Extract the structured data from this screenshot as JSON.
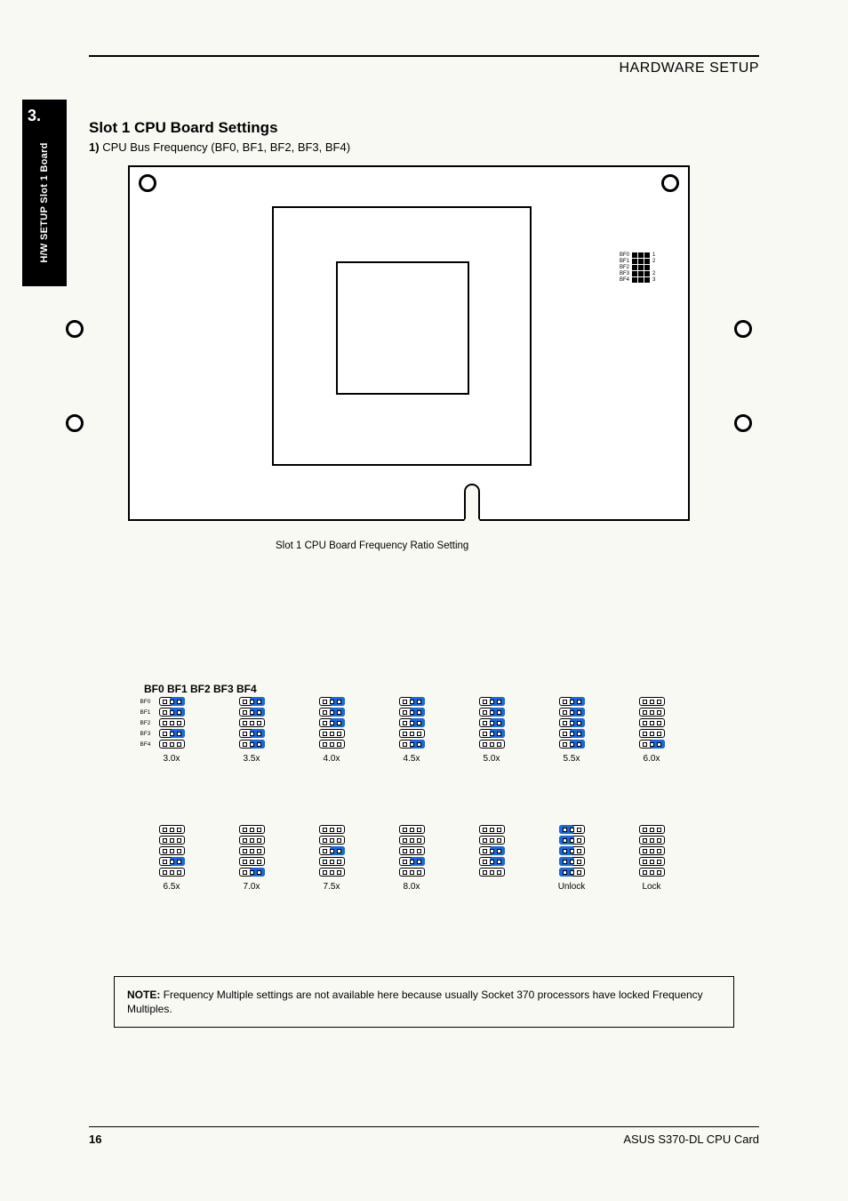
{
  "header": {
    "text": "HARDWARE SETUP"
  },
  "side_tab": {
    "number": "3.",
    "label": "H/W SETUP Slot 1 Board"
  },
  "section": {
    "title": "Slot 1 CPU Board Settings",
    "prefix": "1)",
    "body": "CPU Bus Frequency (BF0, BF1, BF2, BF3, BF4)"
  },
  "board": {
    "labels": {
      "bf0": "BF0",
      "bf1": "BF1",
      "bf2": "BF2",
      "bf3": "BF3",
      "bf4": "BF4",
      "pin1": "1",
      "pin2a": "2",
      "pin2b": "2",
      "pin3": "3"
    }
  },
  "caption": {
    "text": "Slot 1 CPU Board Frequency Ratio Setting"
  },
  "settings_top": {
    "heading": "BF0 BF1 BF2 BF3 BF4",
    "columns": [
      {
        "ratio": "3.0x",
        "pattern": [
          "23",
          "23",
          "00",
          "23",
          "00"
        ],
        "labels_left": [
          "BF0",
          "BF1",
          "BF2",
          "BF3",
          "BF4"
        ]
      },
      {
        "ratio": "3.5x",
        "pattern": [
          "23",
          "23",
          "00",
          "23",
          "23"
        ]
      },
      {
        "ratio": "4.0x",
        "pattern": [
          "23",
          "23",
          "23",
          "00",
          "00"
        ]
      },
      {
        "ratio": "4.5x",
        "pattern": [
          "23",
          "23",
          "23",
          "00",
          "23"
        ]
      },
      {
        "ratio": "5.0x",
        "pattern": [
          "23",
          "23",
          "23",
          "23",
          "00"
        ]
      },
      {
        "ratio": "5.5x",
        "pattern": [
          "23",
          "23",
          "23",
          "23",
          "23"
        ]
      },
      {
        "ratio": "6.0x",
        "pattern": [
          "00",
          "00",
          "00",
          "00",
          "23"
        ]
      }
    ]
  },
  "settings_bottom": {
    "columns": [
      {
        "ratio": "6.5x",
        "pattern": [
          "00",
          "00",
          "00",
          "23",
          "00"
        ]
      },
      {
        "ratio": "7.0x",
        "pattern": [
          "00",
          "00",
          "00",
          "00",
          "23"
        ]
      },
      {
        "ratio": "7.5x",
        "pattern": [
          "00",
          "00",
          "23",
          "00",
          "00"
        ]
      },
      {
        "ratio": "8.0x",
        "pattern": [
          "00",
          "00",
          "00",
          "23",
          "00",
          "23bottom"
        ],
        "special": "8"
      },
      {
        "ratio": "",
        "pattern_alt": [
          "00",
          "00",
          "23",
          "23",
          "00"
        ],
        "hidden_label": ""
      },
      {
        "ratio": "Unlock",
        "pattern": [
          "12",
          "12l",
          "12",
          "12l",
          "12"
        ]
      },
      {
        "ratio": "Lock",
        "pattern": [
          "00",
          "00",
          "00",
          "00",
          "00"
        ]
      }
    ]
  },
  "note": {
    "bold": "NOTE:",
    "text": " Frequency Multiple settings are not available here because usually Socket 370 processors have locked Frequency Multiples."
  },
  "footer": {
    "page": "16",
    "doc": "ASUS S370-DL CPU Card"
  },
  "colors": {
    "highlight": "#1a68dc",
    "black": "#000000",
    "bg": "#f9f9f4"
  }
}
